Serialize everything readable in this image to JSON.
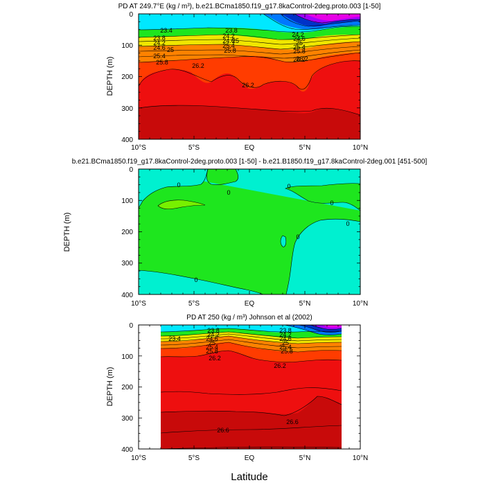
{
  "colors": {
    "cyan": "#00e8ff",
    "turquoise": "#00f0d0",
    "green": "#1ee61e",
    "lime": "#78f000",
    "blue": "#0078ff",
    "dark_blue": "#0032c8",
    "magenta": "#e600e6",
    "violet": "#a000ff",
    "yellow": "#f0e600",
    "orange": "#ff8200",
    "red_orange": "#ff3c00",
    "red": "#ee0f0f",
    "dark_red": "#c80a0a",
    "missing": "#ffffff"
  },
  "xlabel": "Latitude",
  "chart_data": [
    {
      "type": "contour",
      "title": "PD AT 249.7°E (kg / m³), b.e21.BCma1850.f19_g17.8kaControl-2deg.proto.003 [1-50]",
      "ylabel": "DEPTH (m)",
      "xlim": [
        -10,
        10
      ],
      "ylim": [
        400,
        0
      ],
      "x_ticks": [
        "10°S",
        "5°S",
        "EQ",
        "5°N",
        "10°N"
      ],
      "y_ticks": [
        "0",
        "100",
        "200",
        "300",
        "400"
      ],
      "contour_labels": [
        "23.4",
        "23.8",
        "24.2",
        "24.6",
        "25",
        "25.4",
        "25.8",
        "26.2",
        "23.8",
        "24.2",
        "24.6",
        "25",
        "25.4",
        "25.8",
        "26.2",
        "24.2",
        "24.6",
        "25",
        "25.4",
        "25.8",
        "26.2",
        "26.2"
      ]
    },
    {
      "type": "contour",
      "title": "b.e21.BCma1850.f19_g17.8kaControl-2deg.proto.003 [1-50] - b.e21.B1850.f19_g17.8kaControl-2deg.001 [451-500]",
      "ylabel": "DEPTH (m)",
      "xlim": [
        -10,
        10
      ],
      "ylim": [
        400,
        0
      ],
      "x_ticks": [
        "10°S",
        "5°S",
        "EQ",
        "5°N",
        "10°N"
      ],
      "y_ticks": [
        "0",
        "100",
        "200",
        "300",
        "400"
      ],
      "contour_labels": [
        "0",
        "0",
        "0",
        "0",
        "0",
        "0",
        "0"
      ]
    },
    {
      "type": "contour",
      "title": "PD AT 250 (kg / m³) Johnson et al (2002)",
      "ylabel": "DEPTH (m)",
      "xlim": [
        -10,
        10
      ],
      "ylim": [
        400,
        0
      ],
      "x_ticks": [
        "10°S",
        "5°S",
        "EQ",
        "5°N",
        "10°N"
      ],
      "y_ticks": [
        "0",
        "100",
        "200",
        "300",
        "400"
      ],
      "data_lon_range": [
        -8.1,
        8.1
      ],
      "contour_labels": [
        "23.4",
        "23.8",
        "24.2",
        "24.6",
        "25",
        "25.4",
        "25.8",
        "26.2",
        "23.8",
        "24.2",
        "24.6",
        "25",
        "25.4",
        "25.8",
        "26.2",
        "26.6",
        "26.6"
      ]
    }
  ]
}
